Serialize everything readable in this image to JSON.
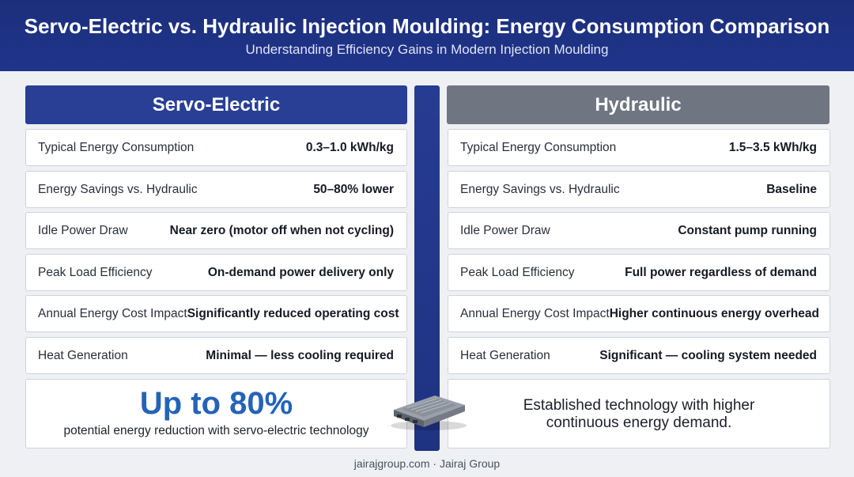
{
  "header": {
    "title": "Servo-Electric vs. Hydraulic Injection Moulding: Energy Consumption Comparison",
    "subtitle": "Understanding Efficiency Gains in Modern Injection Moulding"
  },
  "servo": {
    "heading": "Servo-Electric",
    "rows": [
      {
        "label": "Typical Energy Consumption",
        "value": "0.3–1.0 kWh/kg"
      },
      {
        "label": "Energy Savings vs. Hydraulic",
        "value": "50–80% lower"
      },
      {
        "label": "Idle Power Draw",
        "value": "Near zero (motor off when not cycling)"
      },
      {
        "label": "Peak Load Efficiency",
        "value": "On-demand power delivery only"
      },
      {
        "label": "Annual Energy Cost Impact",
        "value": "Significantly reduced operating cost"
      },
      {
        "label": "Heat Generation",
        "value": "Minimal — less cooling required"
      }
    ],
    "highlight": "Up to 80%",
    "highlight_caption": "potential energy reduction with servo-electric technology"
  },
  "hydraulic": {
    "heading": "Hydraulic",
    "rows": [
      {
        "label": "Typical Energy Consumption",
        "value": "1.5–3.5 kWh/kg"
      },
      {
        "label": "Energy Savings vs. Hydraulic",
        "value": "Baseline"
      },
      {
        "label": "Idle Power Draw",
        "value": "Constant pump running"
      },
      {
        "label": "Peak Load Efficiency",
        "value": "Full power regardless of demand"
      },
      {
        "label": "Annual Energy Cost Impact",
        "value": "Higher continuous energy overhead"
      },
      {
        "label": "Heat Generation",
        "value": "Significant — cooling system needed"
      }
    ],
    "summary_line1": "Established technology with higher",
    "summary_line2": "continuous energy demand."
  },
  "footer": {
    "text": "jairajgroup.com · Jairaj Group"
  },
  "colors": {
    "header_bg": "#1f3382",
    "servo_accent": "#283f95",
    "hydraulic_accent": "#6f7681",
    "highlight": "#2463b8"
  },
  "icons": {
    "device": "servo-drive-module-icon"
  }
}
